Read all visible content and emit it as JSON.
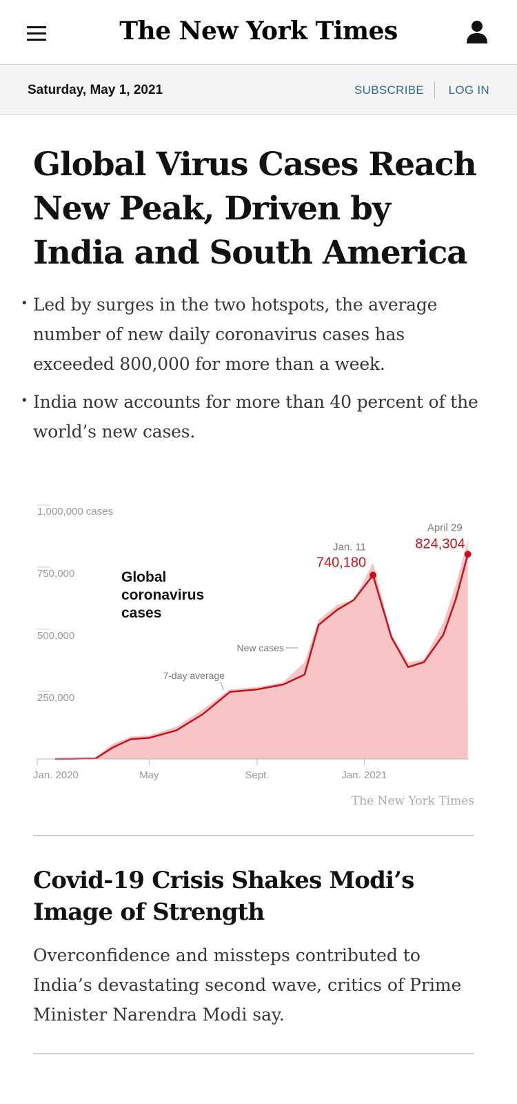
{
  "header": {
    "logo": "The New York Times",
    "date": "Saturday, May 1, 2021",
    "subscribe": "SUBSCRIBE",
    "login": "LOG IN"
  },
  "article": {
    "headline": "Global Virus Cases Reach New Peak, Driven by India and South America",
    "bullets": [
      "Led by surges in the two hotspots, the average number of new daily coronavirus cases has exceeded 800,000 for more than a week.",
      "India now accounts for more than 40 percent of the world’s new cases."
    ]
  },
  "chart_data": {
    "type": "area",
    "title": "Global coronavirus cases",
    "credit": "The New York Times",
    "y_tick_labels": [
      "1,000,000 cases",
      "750,000",
      "500,000",
      "250,000"
    ],
    "y_ticks": [
      1000000,
      750000,
      500000,
      250000
    ],
    "ylim": [
      0,
      1000000
    ],
    "x_tick_labels": [
      "Jan. 2020",
      "May",
      "Sept.",
      "Jan. 2021"
    ],
    "x_ticks": [
      "2020-01-15",
      "2020-05-01",
      "2020-09-01",
      "2021-01-01"
    ],
    "xlim": [
      "2020-01-15",
      "2021-04-30"
    ],
    "series": [
      {
        "name": "New cases",
        "x": [
          "2020-01-15",
          "2020-03-01",
          "2020-03-20",
          "2020-04-10",
          "2020-05-01",
          "2020-06-01",
          "2020-07-01",
          "2020-08-01",
          "2020-09-01",
          "2020-10-01",
          "2020-10-25",
          "2020-11-10",
          "2020-12-01",
          "2020-12-20",
          "2021-01-11",
          "2021-02-01",
          "2021-02-20",
          "2021-03-10",
          "2021-04-01",
          "2021-04-15",
          "2021-04-29"
        ],
        "y": [
          0,
          5000,
          60000,
          90000,
          95000,
          130000,
          200000,
          280000,
          290000,
          310000,
          390000,
          560000,
          620000,
          640000,
          790000,
          500000,
          390000,
          400000,
          550000,
          700000,
          880000
        ]
      },
      {
        "name": "7-day average",
        "x": [
          "2020-01-15",
          "2020-03-01",
          "2020-03-20",
          "2020-04-10",
          "2020-05-01",
          "2020-06-01",
          "2020-07-01",
          "2020-08-01",
          "2020-09-01",
          "2020-10-01",
          "2020-10-25",
          "2020-11-10",
          "2020-12-01",
          "2020-12-20",
          "2021-01-11",
          "2021-02-01",
          "2021-02-20",
          "2021-03-10",
          "2021-04-01",
          "2021-04-15",
          "2021-04-29"
        ],
        "y": [
          0,
          2000,
          45000,
          80000,
          85000,
          115000,
          180000,
          270000,
          280000,
          300000,
          340000,
          540000,
          600000,
          640000,
          740180,
          490000,
          370000,
          390000,
          500000,
          640000,
          824304
        ]
      }
    ],
    "annotations": [
      {
        "label": "Jan. 11",
        "value_label": "740,180",
        "x": "2021-01-11",
        "y": 740180
      },
      {
        "label": "April 29",
        "value_label": "824,304",
        "x": "2021-04-29",
        "y": 824304
      },
      {
        "label": "New cases"
      },
      {
        "label": "7-day average"
      }
    ],
    "colors": {
      "area": "#f7c5c5",
      "line": "#c4111a",
      "text_grey": "#777777"
    }
  },
  "story2": {
    "title": "Covid-19 Crisis Shakes Modi’s Image of Strength",
    "summary": "Overconfidence and missteps contributed to India’s devastating second wave, critics of Prime Minister Narendra Modi say."
  }
}
